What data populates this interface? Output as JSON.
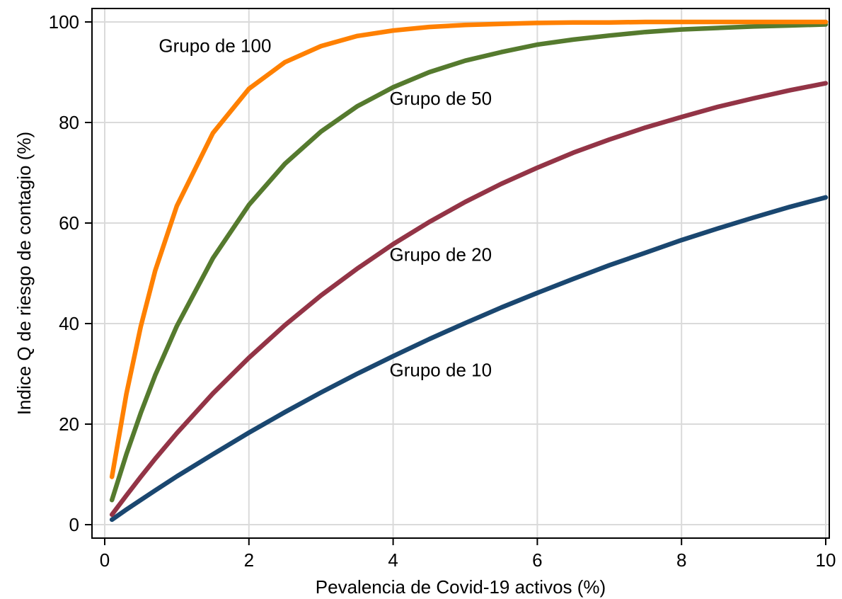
{
  "chart_data": {
    "type": "line",
    "title": "",
    "xlabel": "Pevalencia de Covid-19 activos (%)",
    "ylabel": "Indice Q de riesgo de contagio (%)",
    "xlim": [
      0,
      10
    ],
    "ylim": [
      0,
      100
    ],
    "xticks": [
      0,
      2,
      4,
      6,
      8,
      10
    ],
    "yticks": [
      0,
      20,
      40,
      60,
      80,
      100
    ],
    "grid": true,
    "legend": "none",
    "x": [
      0.1,
      0.3,
      0.5,
      0.7,
      1,
      1.5,
      2,
      2.5,
      3,
      3.5,
      4,
      4.5,
      5,
      5.5,
      6,
      6.5,
      7,
      7.5,
      8,
      8.5,
      9,
      9.5,
      10
    ],
    "series": [
      {
        "name": "Grupo de 100",
        "color": "#ff8000",
        "label_pos": [
          0.75,
          94
        ],
        "values": [
          9.5,
          26,
          39.4,
          50.5,
          63.4,
          77.9,
          86.7,
          92.0,
          95.2,
          97.2,
          98.3,
          99.0,
          99.4,
          99.6,
          99.8,
          99.9,
          99.9,
          100,
          100,
          100,
          100,
          100,
          100
        ]
      },
      {
        "name": "Grupo de 50",
        "color": "#557a2e",
        "label_pos": [
          3.95,
          83.5
        ],
        "values": [
          4.9,
          14,
          22.2,
          29.7,
          39.5,
          53.0,
          63.6,
          71.8,
          78.2,
          83.2,
          87.0,
          90.0,
          92.3,
          94.0,
          95.5,
          96.5,
          97.3,
          98.0,
          98.5,
          98.8,
          99.1,
          99.3,
          99.5
        ]
      },
      {
        "name": "Grupo de 20",
        "color": "#933446",
        "label_pos": [
          3.95,
          52.5
        ],
        "values": [
          2.0,
          5.8,
          9.5,
          13.1,
          18.2,
          26.1,
          33.2,
          39.7,
          45.6,
          50.9,
          55.8,
          60.2,
          64.2,
          67.8,
          71.0,
          74.0,
          76.6,
          79.0,
          81.1,
          83.1,
          84.8,
          86.4,
          87.8
        ]
      },
      {
        "name": "Grupo de 10",
        "color": "#1a4770",
        "label_pos": [
          3.95,
          29.5
        ],
        "values": [
          1.0,
          3.0,
          4.9,
          6.8,
          9.6,
          14.0,
          18.3,
          22.4,
          26.3,
          30.0,
          33.5,
          36.9,
          40.1,
          43.2,
          46.1,
          48.9,
          51.6,
          54.1,
          56.6,
          58.9,
          61.1,
          63.2,
          65.1
        ]
      }
    ]
  }
}
